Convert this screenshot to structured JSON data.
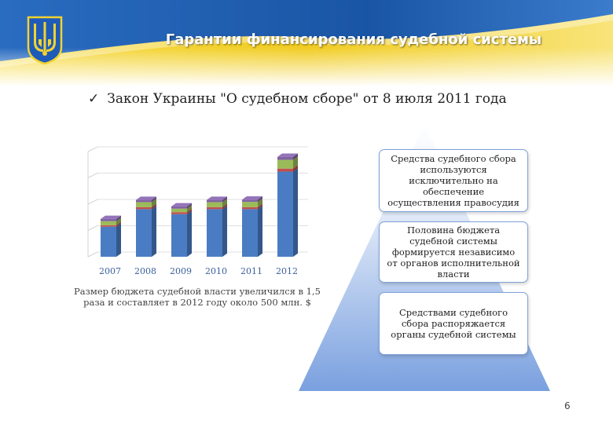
{
  "header": {
    "title": "Гарантии финансирования судебной системы",
    "emblem_icon": "ukraine-trident-icon"
  },
  "bullet": {
    "icon": "checkmark-icon",
    "text": "Закон Украины \"О судебном сборе\" от 8 июля 2011 года"
  },
  "chart_data": {
    "type": "bar",
    "stacked": true,
    "categories": [
      "2007",
      "2008",
      "2009",
      "2010",
      "2011",
      "2012"
    ],
    "series": [
      {
        "color": "#4a7cc4",
        "values": [
          12,
          19,
          17,
          19,
          19,
          34
        ]
      },
      {
        "color": "#c0504d",
        "values": [
          0.6,
          0.8,
          0.8,
          0.8,
          0.8,
          1.2
        ]
      },
      {
        "color": "#9bbb59",
        "values": [
          1.6,
          2.0,
          1.4,
          2.0,
          2.1,
          3.5
        ]
      },
      {
        "color": "#8064a2",
        "values": [
          0.9,
          0.9,
          0.9,
          0.9,
          0.9,
          1.2
        ]
      }
    ],
    "ylim": [
      0,
      42
    ],
    "grid": true,
    "legend": "none"
  },
  "caption": "Размер бюджета судебной власти увеличился в 1,5 раза и составляет в 2012 году около 500 млн. $",
  "pyramid": {
    "boxes": [
      "Средства судебного сбора используются исключительно на обеспечение осуществления правосудия",
      "Половина бюджета судебной системы формируется независимо от органов исполнительной власти",
      "Средствами судебного сбора распоряжается органы судебной системы"
    ]
  },
  "page_number": "6",
  "colors": {
    "flag_blue": "#1f5fb0",
    "flag_yellow": "#f3d230",
    "pyramid_top": "#ffffff",
    "pyramid_bottom": "#7aa0df"
  }
}
